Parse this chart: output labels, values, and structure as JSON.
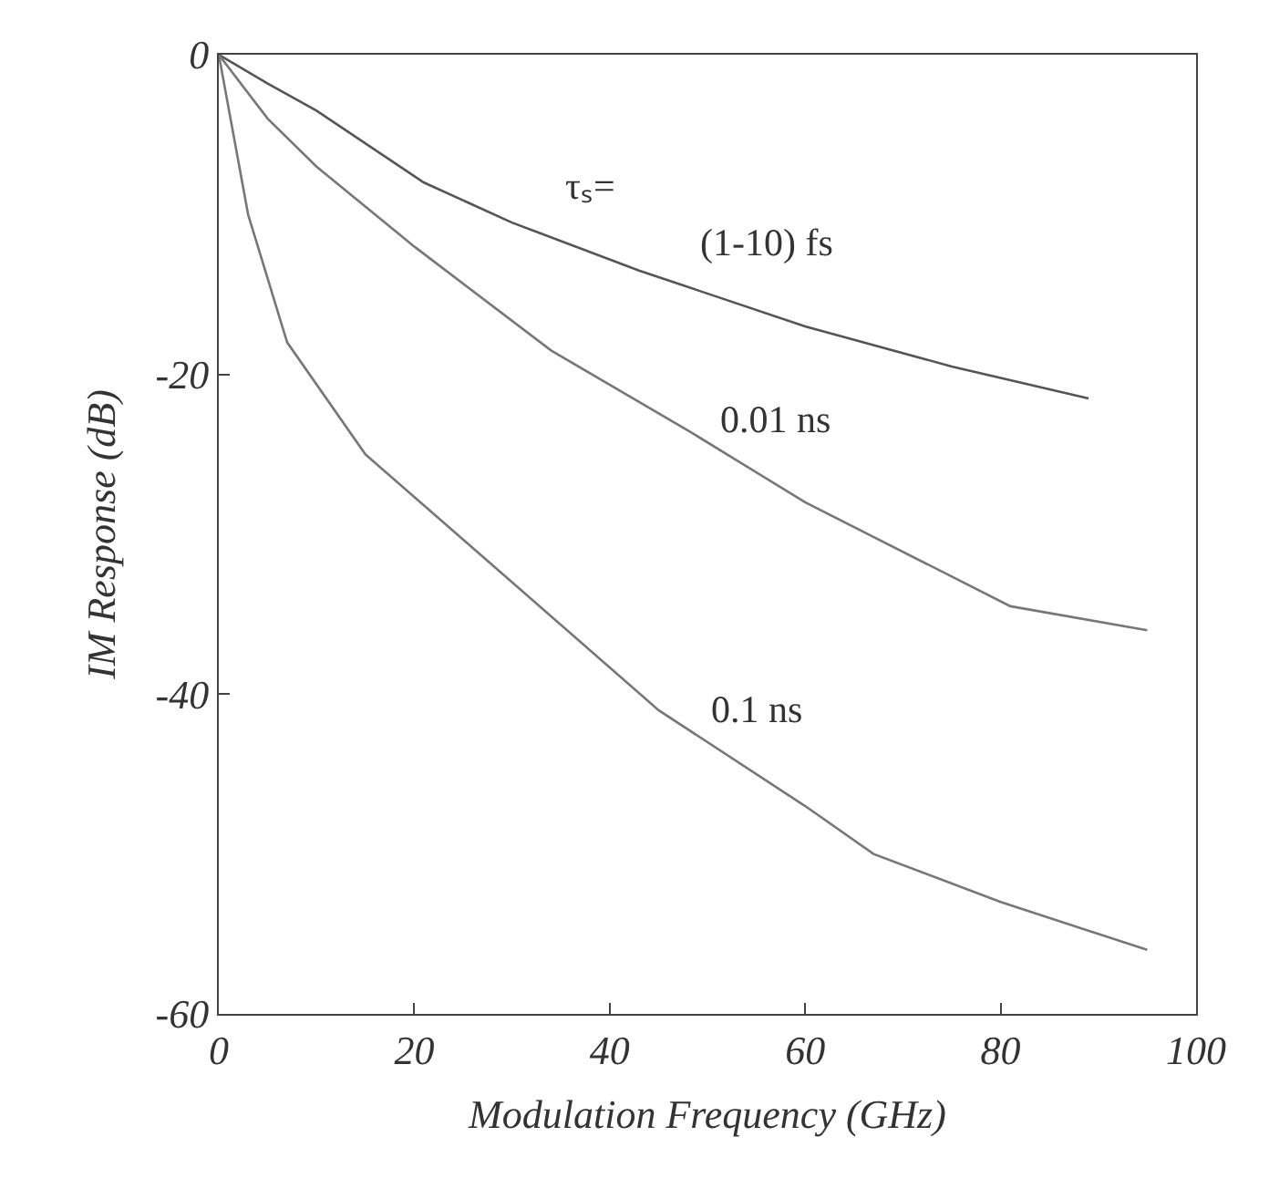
{
  "chart_data": {
    "type": "line",
    "xlabel": "Modulation Frequency (GHz)",
    "ylabel": "IM Response (dB)",
    "xlim": [
      0,
      100
    ],
    "xticks": [
      0,
      20,
      40,
      60,
      80,
      100
    ],
    "ylim": [
      -60,
      0
    ],
    "yticks": [
      -60,
      -40,
      -20,
      0
    ],
    "legend": false,
    "marker": "none",
    "series": [
      {
        "color": "#555555",
        "line_style": "solid",
        "x": [
          0,
          5,
          10,
          21,
          30,
          43,
          60,
          75,
          89
        ],
        "values": [
          0,
          -1.8,
          -3.5,
          -8,
          -10.5,
          -13.5,
          -17,
          -19.5,
          -21.5
        ]
      },
      {
        "color": "#777777",
        "x": [
          0,
          5,
          10,
          20,
          34,
          48,
          60,
          81,
          95
        ],
        "values": [
          0,
          -4,
          -7,
          -12,
          -18.5,
          -23.5,
          -28,
          -34.5,
          -36
        ]
      },
      {
        "color": "#777777",
        "x": [
          0,
          3,
          7,
          15,
          30,
          45,
          60,
          67,
          80,
          95
        ],
        "values": [
          0,
          -10,
          -18,
          -25,
          -33,
          -41,
          -47,
          -50,
          -53,
          -56
        ]
      }
    ],
    "annotations": [
      "τₛ=",
      "(1-10) fs",
      "0.01 ns",
      "0.1 ns"
    ]
  }
}
